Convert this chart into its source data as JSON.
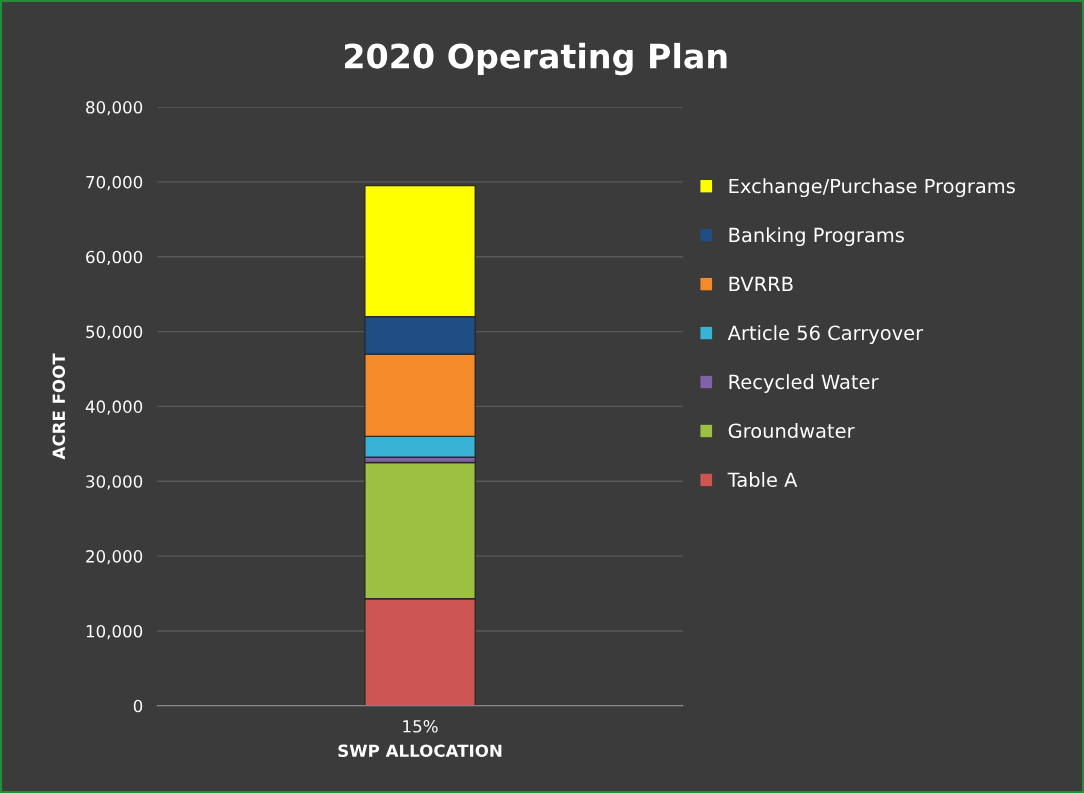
{
  "chart_data": {
    "type": "bar",
    "title": "2020 Operating Plan",
    "xlabel": "SWP ALLOCATION",
    "ylabel": "ACRE FOOT",
    "categories": [
      "15%"
    ],
    "stacked": true,
    "series": [
      {
        "name": "Table A",
        "color": "#cd5553",
        "values": [
          14300
        ]
      },
      {
        "name": "Groundwater",
        "color": "#9cc142",
        "values": [
          18200
        ]
      },
      {
        "name": "Recycled Water",
        "color": "#7f62a8",
        "values": [
          700
        ]
      },
      {
        "name": "Article 56 Carryover",
        "color": "#38b3d6",
        "values": [
          2800
        ]
      },
      {
        "name": "BVRRB",
        "color": "#f48a2a",
        "values": [
          11000
        ]
      },
      {
        "name": "Banking Programs",
        "color": "#1f4e85",
        "values": [
          5000
        ]
      },
      {
        "name": "Exchange/Purchase Programs",
        "color": "#ffff00",
        "values": [
          17500
        ]
      }
    ],
    "ylim": [
      0,
      80000
    ],
    "yticks": [
      {
        "value": 0,
        "label": "0"
      },
      {
        "value": 10000,
        "label": "10,000"
      },
      {
        "value": 20000,
        "label": "20,000"
      },
      {
        "value": 30000,
        "label": "30,000"
      },
      {
        "value": 40000,
        "label": "40,000"
      },
      {
        "value": 50000,
        "label": "50,000"
      },
      {
        "value": 60000,
        "label": "60,000"
      },
      {
        "value": 70000,
        "label": "70,000"
      },
      {
        "value": 80000,
        "label": "80,000"
      }
    ],
    "grid": "y",
    "legend": "right"
  }
}
